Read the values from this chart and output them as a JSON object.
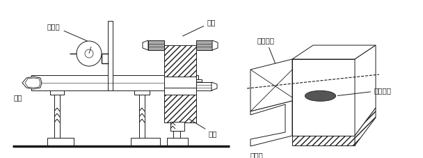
{
  "bg_color": "#ffffff",
  "line_color": "#1a1a1a",
  "labels": {
    "baifenbiao": "百分表",
    "lianggui": "圆规",
    "liang_zhi": "量值",
    "chi_lun": "齿轮",
    "nihe_zhongxian": "噌合中线",
    "jiecha_diandian": "接触斋点",
    "nihe_mian": "噌合面"
  },
  "font_size": 7.5
}
